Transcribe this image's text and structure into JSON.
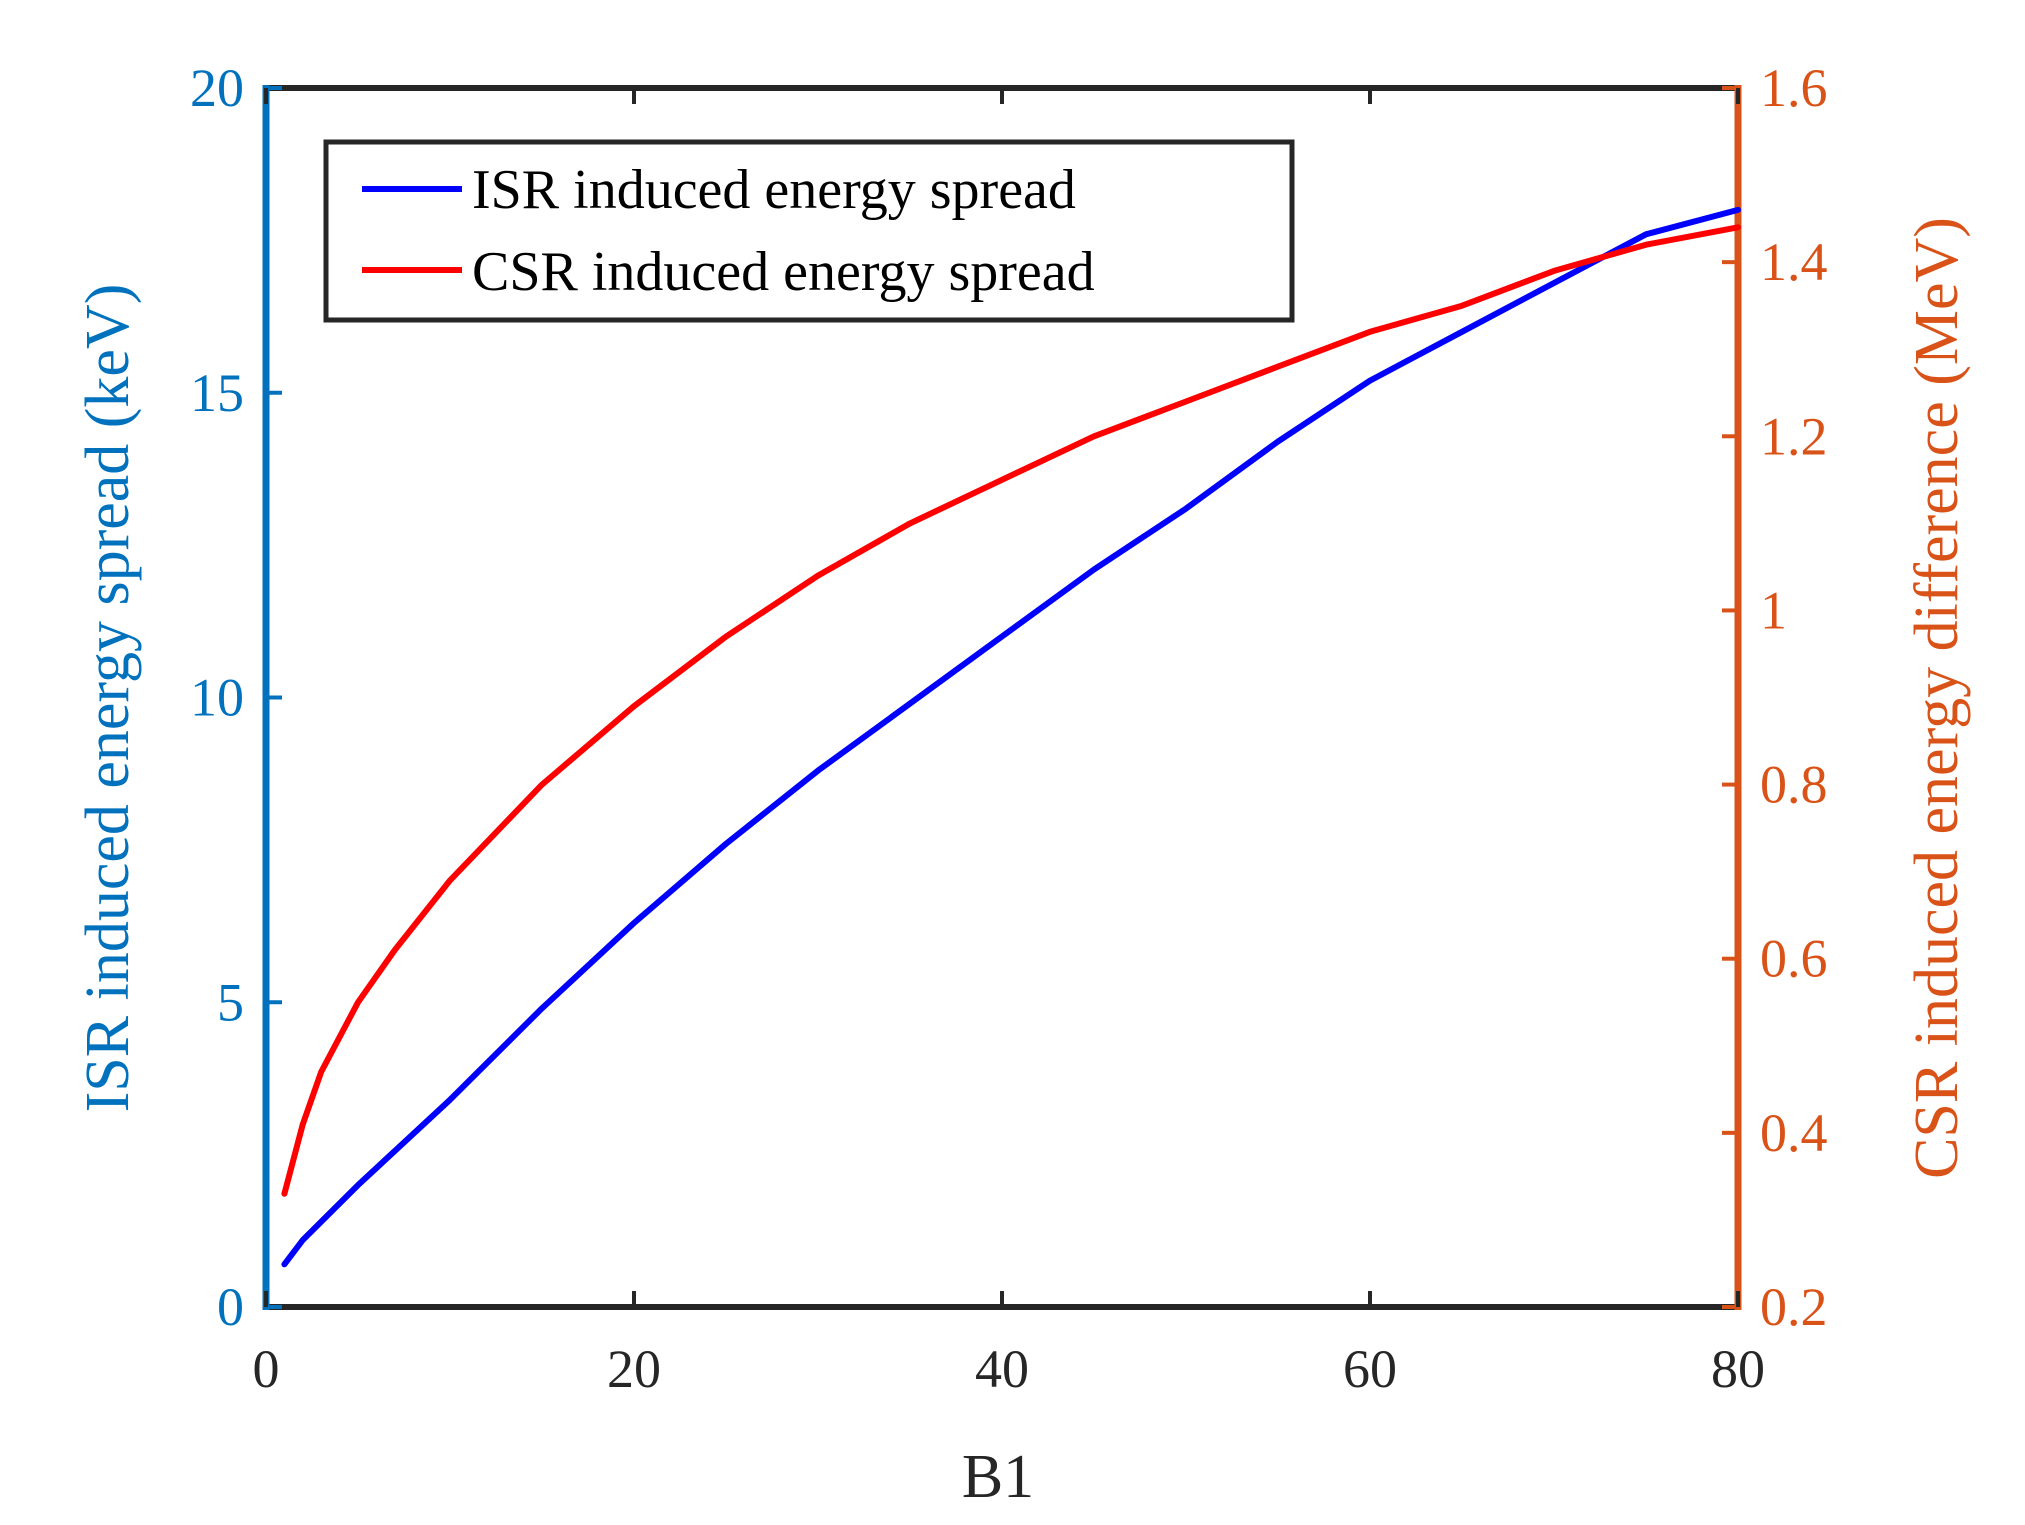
{
  "colors": {
    "left_axis": "#0072BD",
    "right_axis": "#D95319",
    "isr_line": "#0000FF",
    "csr_line": "#FF0000",
    "box": "#262626"
  },
  "chart_data": {
    "type": "line",
    "xlabel": "B1",
    "ylabel_left": "ISR induced energy spread (keV)",
    "ylabel_right": "CSR induced energy difference (MeV)",
    "xlim": [
      0,
      80
    ],
    "ylim_left": [
      0,
      20
    ],
    "ylim_right": [
      0.2,
      1.6
    ],
    "x_ticks": [
      0,
      20,
      40,
      60,
      80
    ],
    "y_left_ticks": [
      0,
      5,
      10,
      15,
      20
    ],
    "y_right_ticks": [
      0.2,
      0.4,
      0.6,
      0.8,
      1,
      1.2,
      1.4,
      1.6
    ],
    "legend_position": "top-left",
    "grid": false,
    "series": [
      {
        "name": "ISR induced energy spread",
        "axis": "left",
        "color": "#0000FF",
        "x": [
          1,
          2,
          5,
          10,
          15,
          20,
          25,
          30,
          35,
          40,
          45,
          50,
          55,
          60,
          65,
          70,
          75,
          80
        ],
        "y": [
          0.7,
          1.1,
          2.0,
          3.4,
          4.9,
          6.3,
          7.6,
          8.8,
          9.9,
          11.0,
          12.1,
          13.1,
          14.2,
          15.2,
          16.0,
          16.8,
          17.6,
          18.0
        ]
      },
      {
        "name": "CSR induced energy spread",
        "axis": "right",
        "color": "#FF0000",
        "x": [
          1,
          2,
          3,
          5,
          7,
          10,
          15,
          20,
          25,
          30,
          35,
          40,
          45,
          50,
          55,
          60,
          65,
          70,
          75,
          80
        ],
        "y": [
          0.33,
          0.41,
          0.47,
          0.55,
          0.61,
          0.69,
          0.8,
          0.89,
          0.97,
          1.04,
          1.1,
          1.15,
          1.2,
          1.24,
          1.28,
          1.32,
          1.35,
          1.39,
          1.42,
          1.44
        ]
      }
    ]
  }
}
